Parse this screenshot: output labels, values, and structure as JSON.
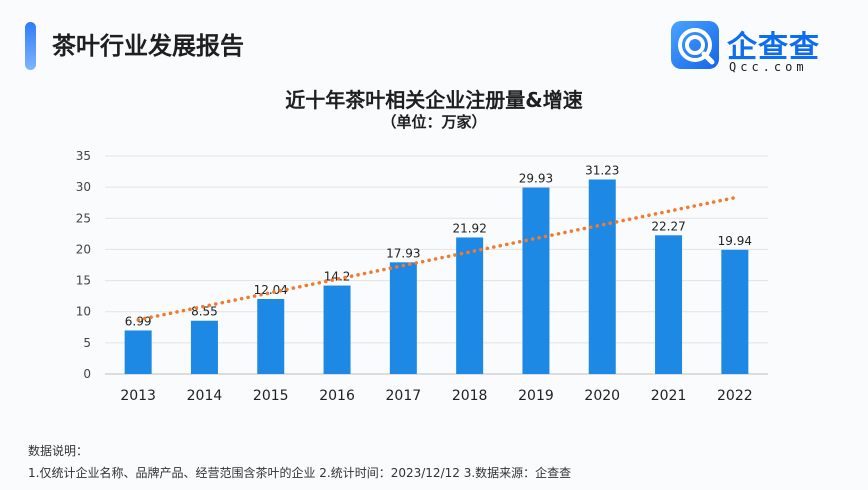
{
  "report_title": "茶叶行业发展报告",
  "logo": {
    "name": "企查查",
    "domain": "Qcc.com",
    "icon": "magnifier-q-icon"
  },
  "colors": {
    "accent": "#1e88e5",
    "trend": "#f07b2e",
    "brand": "#0d6cf0"
  },
  "chart_data": {
    "type": "bar",
    "title": "近十年茶叶相关企业注册量&增速",
    "subtitle": "（单位：万家）",
    "categories": [
      "2013",
      "2014",
      "2015",
      "2016",
      "2017",
      "2018",
      "2019",
      "2020",
      "2021",
      "2022"
    ],
    "values": [
      6.99,
      8.55,
      12.04,
      14.2,
      17.93,
      21.92,
      29.93,
      31.23,
      22.27,
      19.94
    ],
    "value_labels": [
      "6.99",
      "8.55",
      "12.04",
      "14.2",
      "17.93",
      "21.92",
      "29.93",
      "31.23",
      "22.27",
      "19.94"
    ],
    "yticks": [
      0,
      5,
      10,
      15,
      20,
      25,
      30,
      35
    ],
    "ylim": [
      0,
      35
    ],
    "grid": true,
    "trendline": {
      "type": "linear",
      "style": "dotted"
    },
    "xlabel": "",
    "ylabel": ""
  },
  "notes": {
    "heading": "数据说明：",
    "line": "1.仅统计企业名称、品牌产品、经营范围含茶叶的企业  2.统计时间：2023/12/12  3.数据来源：企查查"
  }
}
